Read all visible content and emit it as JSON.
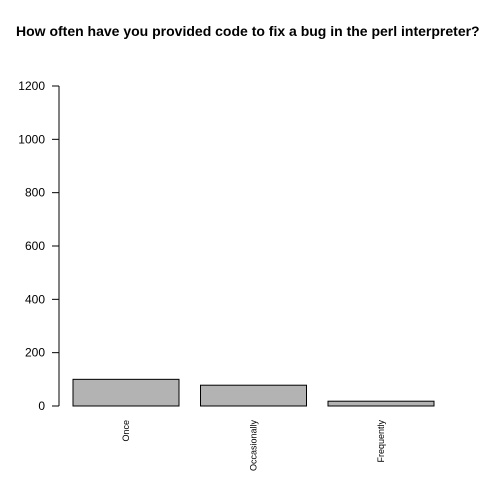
{
  "chart_data": {
    "type": "bar",
    "title": "How often have you provided code to fix a bug in the perl interpreter?",
    "xlabel": "",
    "ylabel": "",
    "categories": [
      "Once",
      "Occasionally",
      "Frequently"
    ],
    "values": [
      100,
      78,
      18
    ],
    "ylim": [
      0,
      1200
    ],
    "yticks": [
      0,
      200,
      400,
      600,
      800,
      1000,
      1200
    ],
    "grid": false,
    "legend": "none",
    "bar_color": "#b3b3b3",
    "bar_border_color": "#000000",
    "axis_color": "#000000"
  }
}
